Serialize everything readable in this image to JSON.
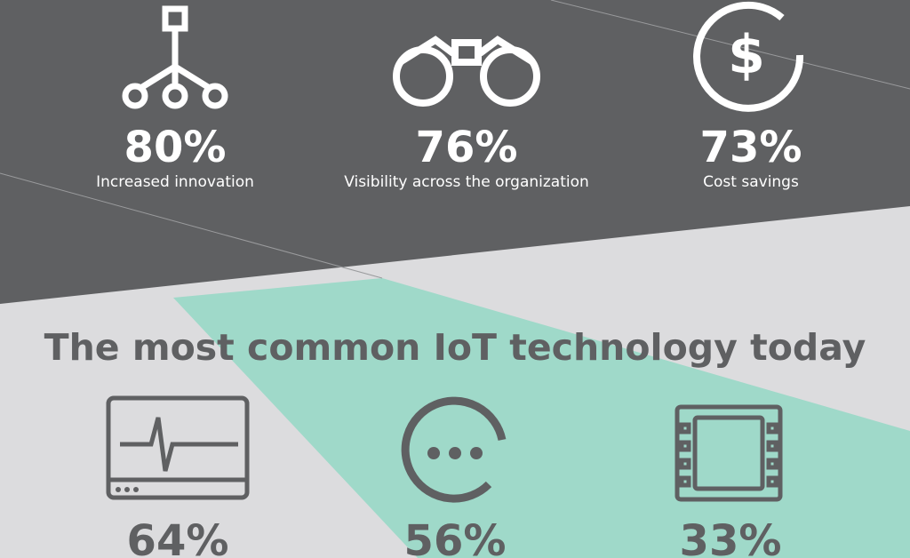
{
  "benefits": [
    {
      "value": "80%",
      "label": "Increased innovation"
    },
    {
      "value": "76%",
      "label": "Visibility across the organization"
    },
    {
      "value": "73%",
      "label": "Cost savings"
    }
  ],
  "heading": "The most common IoT technology today",
  "technologies": [
    {
      "value": "64%"
    },
    {
      "value": "56%"
    },
    {
      "value": "33%"
    }
  ]
}
